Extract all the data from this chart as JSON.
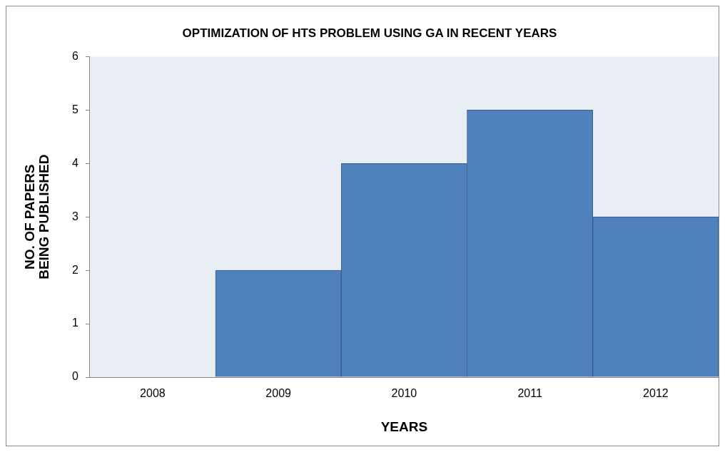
{
  "chart_data": {
    "type": "bar",
    "title": "OPTIMIZATION OF HTS PROBLEM USING GA IN RECENT YEARS",
    "xlabel": "YEARS",
    "ylabel": "NO. OF PAPERS BEING PUBLISHED",
    "categories": [
      "2008",
      "2009",
      "2010",
      "2011",
      "2012"
    ],
    "values": [
      0,
      2,
      4,
      5,
      3
    ],
    "color": "#4f81bd",
    "ylim": [
      0,
      6
    ],
    "yticks": [
      0,
      1,
      2,
      3,
      4,
      5,
      6
    ],
    "grid": false,
    "legend": false
  }
}
